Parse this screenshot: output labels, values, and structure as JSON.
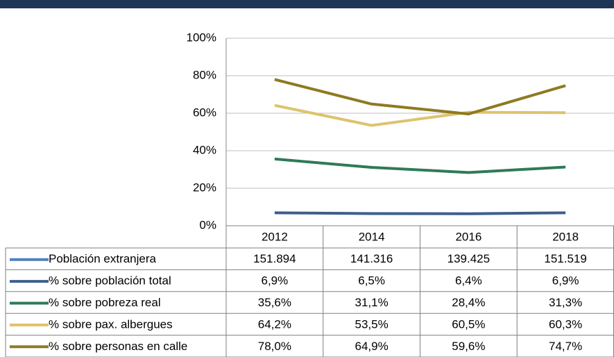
{
  "chart_data": {
    "type": "line",
    "categories": [
      "2012",
      "2014",
      "2016",
      "2018"
    ],
    "ylim": [
      0,
      100
    ],
    "yticks": [
      {
        "value": 0,
        "label": "0%"
      },
      {
        "value": 20,
        "label": "20%"
      },
      {
        "value": 40,
        "label": "40%"
      },
      {
        "value": 60,
        "label": "60%"
      },
      {
        "value": 80,
        "label": "80%"
      },
      {
        "value": 100,
        "label": "100%"
      }
    ],
    "grid": true,
    "series": [
      {
        "name": "Población extranjera",
        "color": "#4f81bd",
        "axis": "none",
        "values": [
          151894,
          141316,
          139425,
          151519
        ],
        "value_labels": [
          "151.894",
          "141.316",
          "139.425",
          "151.519"
        ]
      },
      {
        "name": "% sobre población total",
        "color": "#3e5e8c",
        "values": [
          6.9,
          6.5,
          6.4,
          6.9
        ],
        "value_labels": [
          "6,9%",
          "6,5%",
          "6,4%",
          "6,9%"
        ]
      },
      {
        "name": "% sobre pobreza real",
        "color": "#2f7a57",
        "values": [
          35.6,
          31.1,
          28.4,
          31.3
        ],
        "value_labels": [
          "35,6%",
          "31,1%",
          "28,4%",
          "31,3%"
        ]
      },
      {
        "name": "% sobre pax. albergues",
        "color": "#dfc26c",
        "values": [
          64.2,
          53.5,
          60.5,
          60.3
        ],
        "value_labels": [
          "64,2%",
          "53,5%",
          "60,5%",
          "60,3%"
        ]
      },
      {
        "name": "% sobre personas en calle",
        "color": "#8e7a22",
        "values": [
          78.0,
          64.9,
          59.6,
          74.7
        ],
        "value_labels": [
          "78,0%",
          "64,9%",
          "59,6%",
          "74,7%"
        ]
      }
    ]
  }
}
